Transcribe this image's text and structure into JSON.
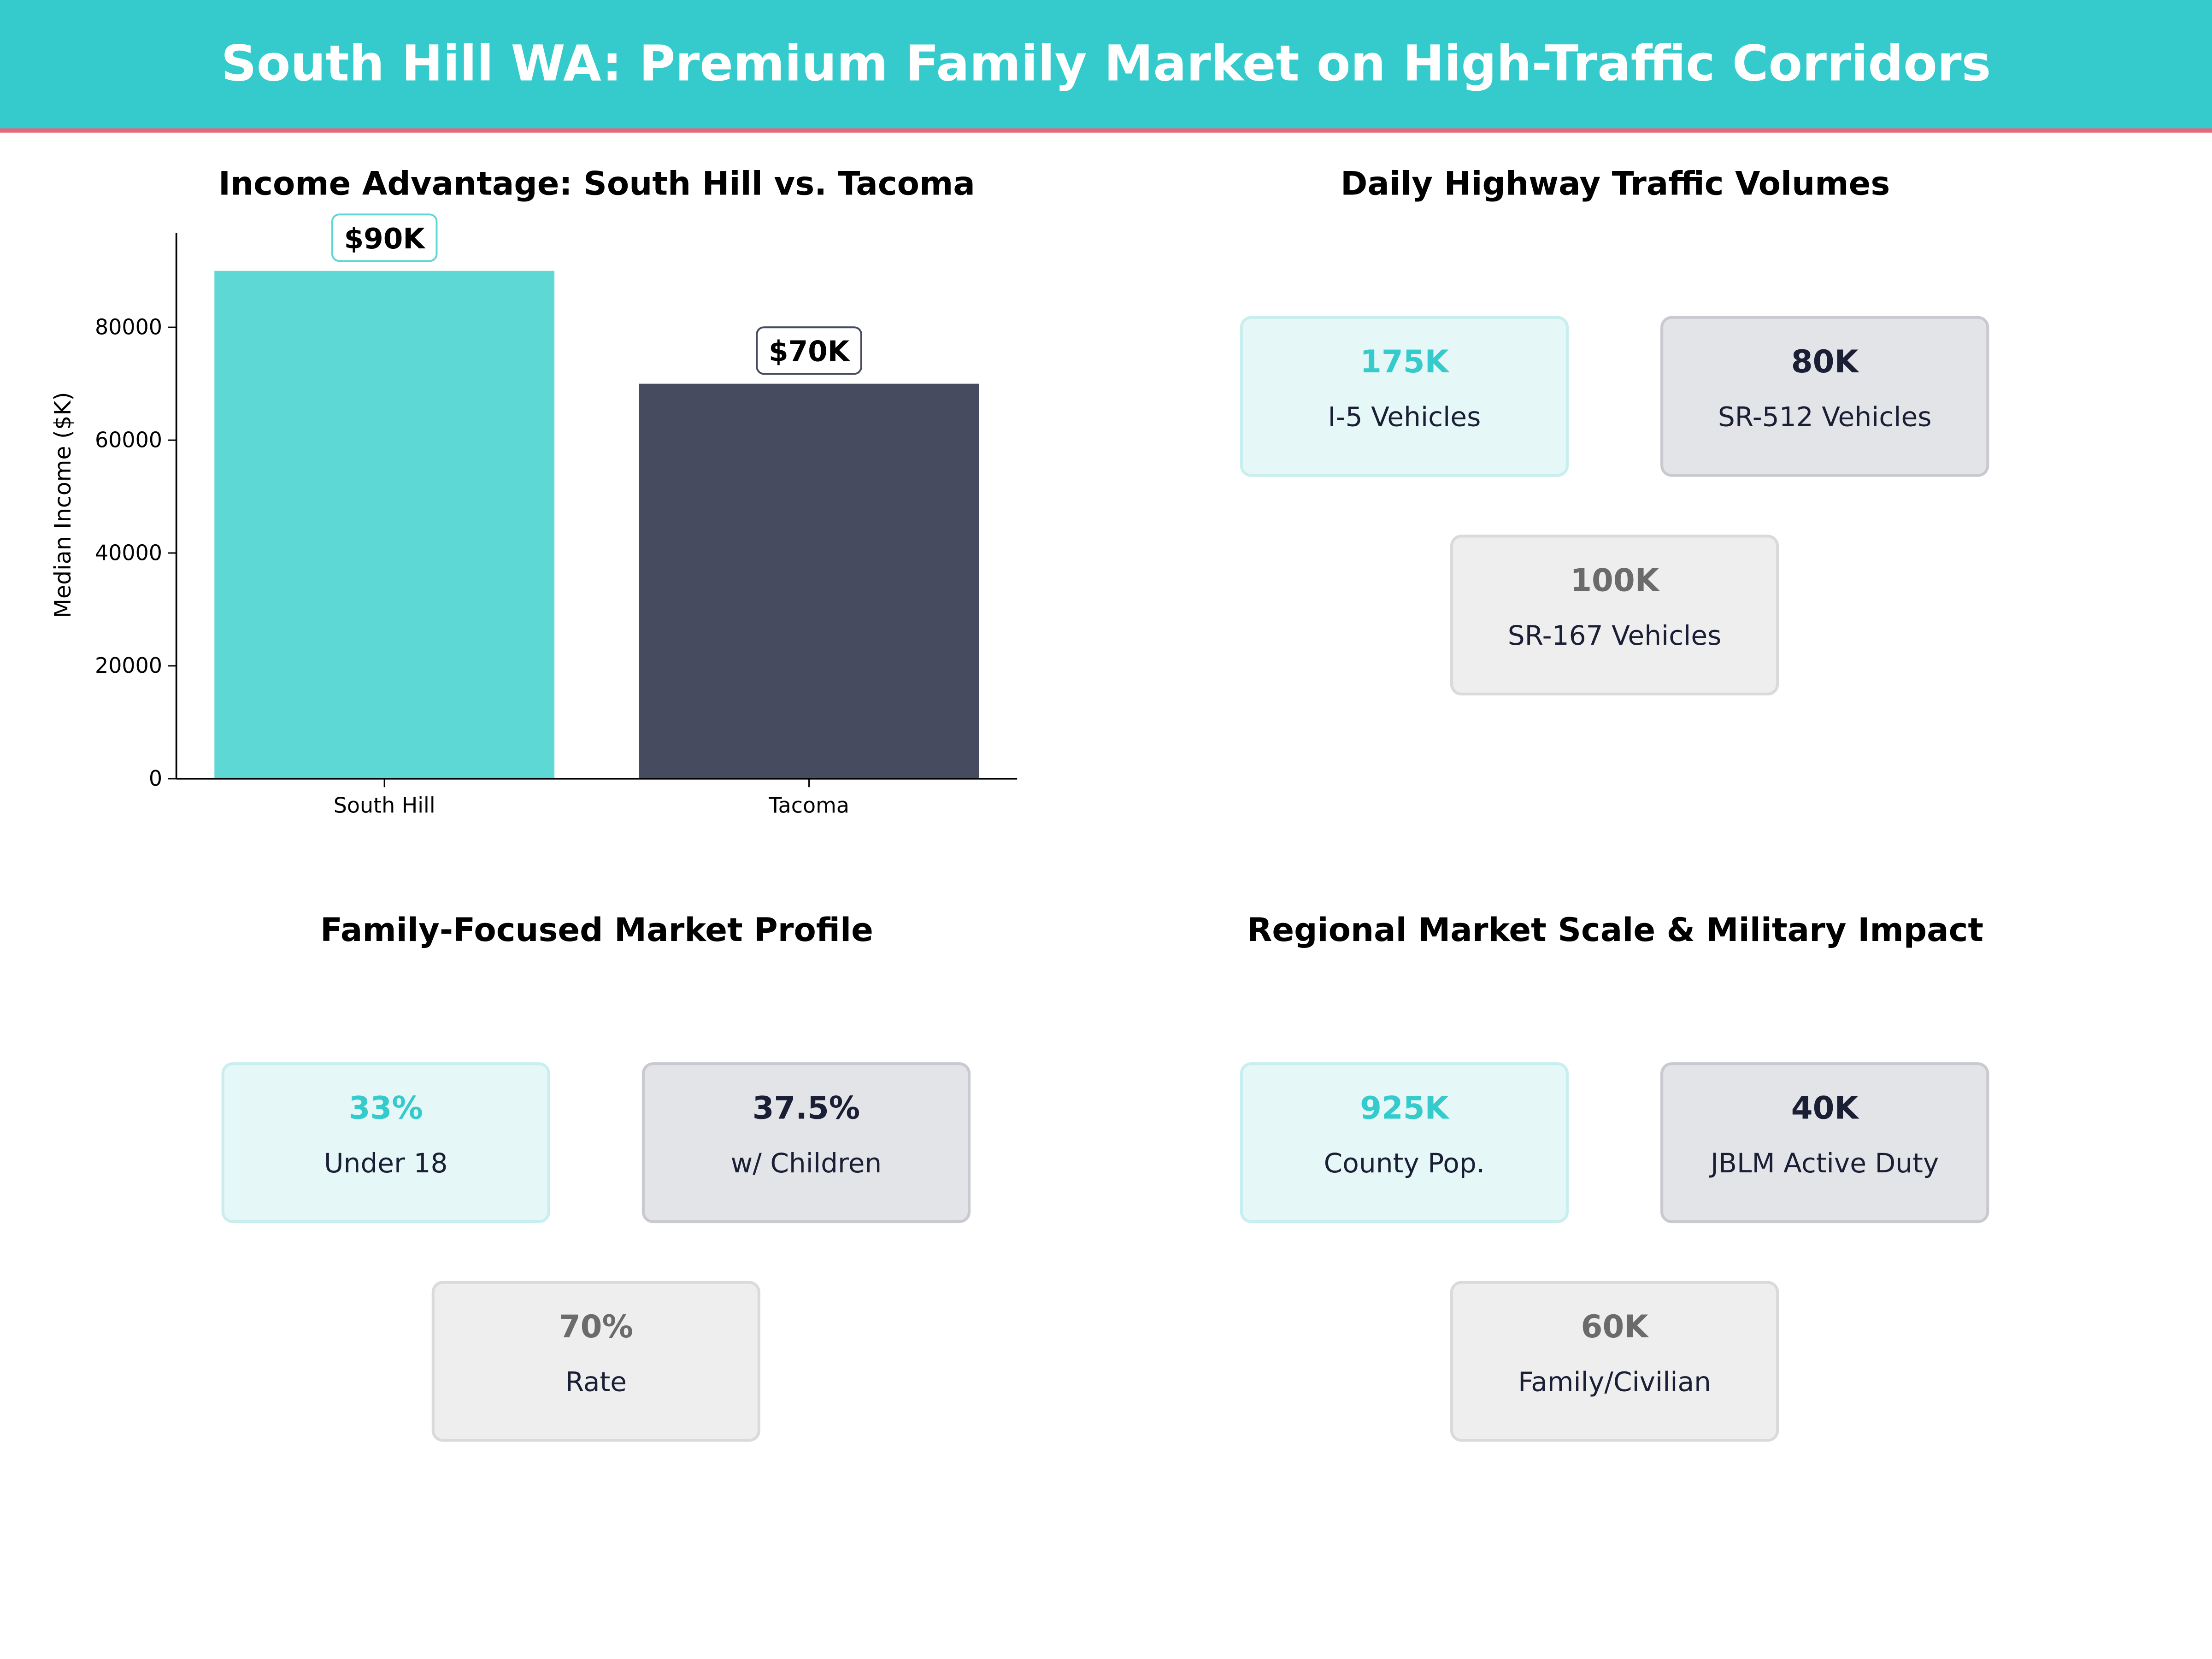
{
  "header": {
    "title": "South Hill WA: Premium Family Market on High-Traffic Corridors",
    "bg_color": "#35CBCC",
    "accent_line_color": "#E8657A"
  },
  "chart_data": {
    "type": "bar",
    "title": "Income Advantage: South Hill vs. Tacoma",
    "xlabel": "",
    "ylabel": "Median Income ($K)",
    "categories": [
      "South Hill",
      "Tacoma"
    ],
    "values": [
      90000,
      70000
    ],
    "data_labels": [
      "$90K",
      "$70K"
    ],
    "colors": [
      "#5DD8D4",
      "#464B60"
    ],
    "ylim": [
      0,
      97000
    ],
    "yticks": [
      0,
      20000,
      40000,
      60000,
      80000
    ],
    "grid": false
  },
  "panels": [
    {
      "title": "Daily Highway Traffic Volumes",
      "cards": [
        {
          "value": "175K",
          "label": "I-5  Vehicles",
          "style": "teal"
        },
        {
          "value": "80K",
          "label": "SR-512  Vehicles",
          "style": "navy"
        },
        {
          "value": "100K",
          "label": "SR-167  Vehicles",
          "style": "gray"
        }
      ]
    },
    {
      "title": "Family-Focused Market Profile",
      "cards": [
        {
          "value": "33%",
          "label": "Under 18",
          "style": "teal"
        },
        {
          "value": "37.5%",
          "label": "w/ Children",
          "style": "navy"
        },
        {
          "value": "70%",
          "label": "Rate",
          "style": "gray"
        }
      ]
    },
    {
      "title": "Regional Market Scale & Military Impact",
      "cards": [
        {
          "value": "925K",
          "label": "County Pop.",
          "style": "teal"
        },
        {
          "value": "40K",
          "label": "JBLM Active Duty",
          "style": "navy"
        },
        {
          "value": "60K",
          "label": "Family/Civilian",
          "style": "gray"
        }
      ]
    }
  ]
}
